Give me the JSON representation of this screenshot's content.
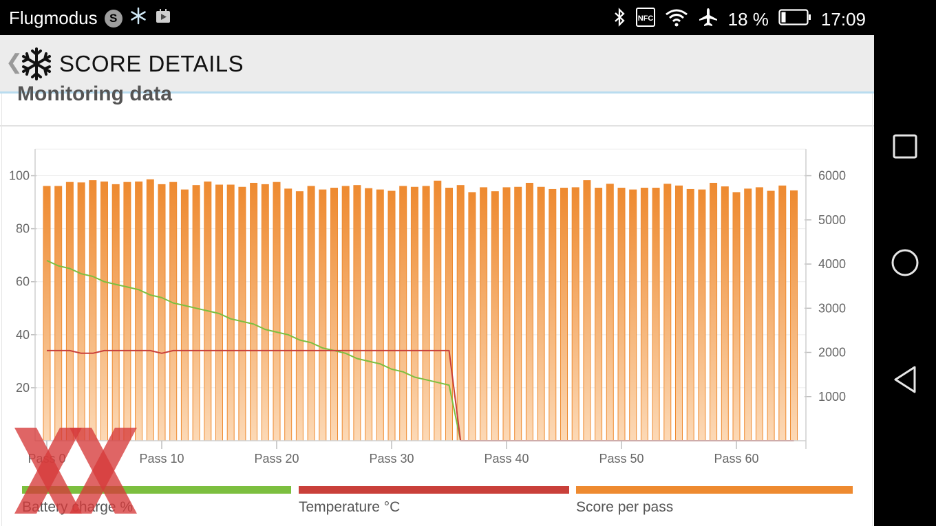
{
  "status_bar": {
    "mode_text": "Flugmodus",
    "s_badge": "S",
    "icons_left": [
      "s-badge-icon",
      "snowflake-app-icon",
      "play-store-icon"
    ],
    "icons_right": [
      "bluetooth-icon",
      "nfc-icon",
      "wifi-icon",
      "airplane-icon",
      "battery-icon"
    ],
    "nfc_label": "NFC",
    "battery_text": "18 %",
    "time": "17:09"
  },
  "app_bar": {
    "back_symbol": "❮",
    "title": "SCORE DETAILS"
  },
  "section": {
    "title": "Monitoring data"
  },
  "chart_data": {
    "type": "bar",
    "x_tick_labels": [
      "Pass 0",
      "Pass 10",
      "Pass 20",
      "Pass 30",
      "Pass 40",
      "Pass 50",
      "Pass 60"
    ],
    "left_axis": {
      "ticks": [
        "20",
        "40",
        "60",
        "80",
        "100"
      ],
      "range": [
        0,
        110
      ]
    },
    "right_axis": {
      "ticks": [
        "1000",
        "2000",
        "3000",
        "4000",
        "5000",
        "6000"
      ],
      "range": [
        0,
        6600
      ]
    },
    "grid": true,
    "legend_position": "bottom",
    "series": [
      {
        "name": "Score per pass",
        "color": "#ee8a30",
        "axis": "right",
        "type": "bar",
        "values": [
          5760,
          5760,
          5850,
          5840,
          5890,
          5860,
          5800,
          5850,
          5860,
          5910,
          5800,
          5850,
          5680,
          5780,
          5860,
          5790,
          5790,
          5740,
          5830,
          5800,
          5850,
          5700,
          5640,
          5760,
          5680,
          5720,
          5760,
          5780,
          5710,
          5680,
          5650,
          5760,
          5740,
          5760,
          5880,
          5720,
          5780,
          5620,
          5730,
          5640,
          5730,
          5740,
          5830,
          5740,
          5690,
          5720,
          5730,
          5890,
          5720,
          5810,
          5720,
          5680,
          5720,
          5720,
          5810,
          5770,
          5690,
          5680,
          5830,
          5750,
          5620,
          5700,
          5730,
          5650,
          5770,
          5660
        ]
      },
      {
        "name": "Battery charge %",
        "color": "#7cbf3f",
        "axis": "left",
        "type": "line",
        "values": [
          68,
          66,
          65,
          63,
          62,
          60,
          59,
          58,
          57,
          55,
          54,
          52,
          51,
          50,
          49,
          48,
          46,
          45,
          44,
          42,
          41,
          40,
          38,
          37,
          35,
          34,
          33,
          31,
          30,
          29,
          27,
          26,
          24,
          23,
          22,
          21,
          0,
          0,
          0,
          0,
          0,
          0,
          0,
          0,
          0,
          0,
          0,
          0,
          0,
          0,
          0,
          0,
          0,
          0,
          0,
          0,
          0,
          0,
          0,
          0,
          0,
          0,
          0,
          0,
          0,
          0
        ]
      },
      {
        "name": "Temperature °C",
        "color": "#c9403a",
        "axis": "left",
        "type": "line",
        "values": [
          34,
          34,
          34,
          33,
          33,
          34,
          34,
          34,
          34,
          34,
          33,
          34,
          34,
          34,
          34,
          34,
          34,
          34,
          34,
          34,
          34,
          34,
          34,
          34,
          34,
          34,
          34,
          34,
          34,
          34,
          34,
          34,
          34,
          34,
          34,
          34,
          0,
          0,
          0,
          0,
          0,
          0,
          0,
          0,
          0,
          0,
          0,
          0,
          0,
          0,
          0,
          0,
          0,
          0,
          0,
          0,
          0,
          0,
          0,
          0,
          0,
          0,
          0,
          0,
          0,
          0
        ]
      }
    ]
  },
  "legend": [
    {
      "label": "Battery charge %",
      "color": "#7cbf3f"
    },
    {
      "label": "Temperature °C",
      "color": "#c9403a"
    },
    {
      "label": "Score per pass",
      "color": "#ee8a30"
    }
  ],
  "watermark": {
    "color": "#d63a3a"
  }
}
